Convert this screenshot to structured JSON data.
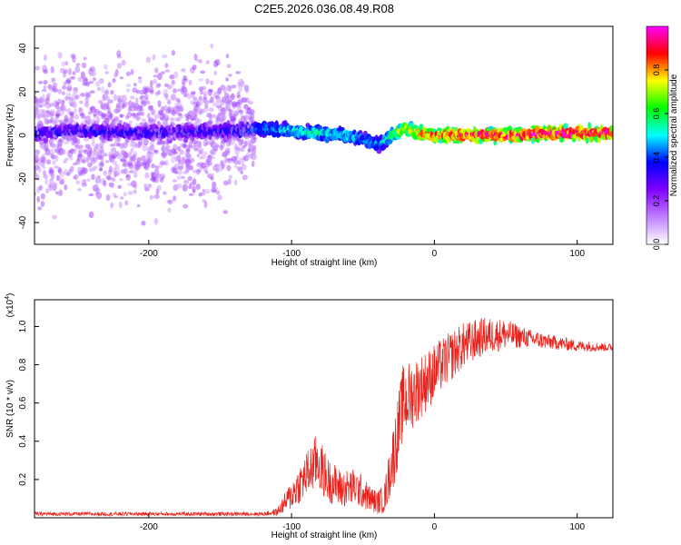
{
  "figure_title": "C2E5.2026.036.08.49.R08",
  "chart_data": [
    {
      "type": "heatmap",
      "name": "spectrogram",
      "xlabel": "Height of straight line (km)",
      "ylabel": "Frequency (Hz)",
      "xlim": [
        -280,
        125
      ],
      "ylim": [
        -50,
        50
      ],
      "xticks": [
        -200,
        -100,
        0,
        100
      ],
      "yticks": [
        -40,
        -20,
        0,
        20,
        40
      ],
      "colorbar": {
        "label": "Normalized spectral amplitude",
        "range": [
          0,
          1
        ],
        "ticks": [
          0.0,
          0.2,
          0.4,
          0.6,
          0.8
        ],
        "colormap": [
          "#ffffff",
          "#c080ff",
          "#8000ff",
          "#0000ff",
          "#00ffff",
          "#00ff00",
          "#ffff00",
          "#ff0000",
          "#ff00ff"
        ]
      },
      "ridge": {
        "x": [
          -280,
          -250,
          -200,
          -150,
          -115,
          -100,
          -80,
          -60,
          -45,
          -38,
          -30,
          -20,
          -10,
          0,
          20,
          40,
          60,
          80,
          100,
          125
        ],
        "freq": [
          1,
          2,
          1,
          2,
          3,
          2,
          1,
          0,
          -3,
          -4,
          0,
          3,
          1,
          0,
          0,
          0,
          0,
          1,
          1,
          1
        ],
        "amplitude": [
          0.35,
          0.35,
          0.35,
          0.35,
          0.45,
          0.5,
          0.55,
          0.5,
          0.45,
          0.45,
          0.6,
          0.75,
          0.8,
          0.85,
          0.9,
          0.92,
          0.93,
          0.94,
          0.95,
          0.95
        ],
        "spread_hz": [
          45,
          45,
          45,
          45,
          8,
          6,
          6,
          6,
          6,
          6,
          3,
          3,
          3,
          3,
          3,
          3,
          3,
          3,
          3,
          3
        ]
      }
    },
    {
      "type": "line",
      "name": "snr",
      "xlabel": "Height of straight line (km)",
      "ylabel": "SNR (10 * v/v)",
      "yscale_label": "(x10",
      "yscale_exp": "4",
      "yscale_close": ")",
      "xlim": [
        -280,
        125
      ],
      "ylim": [
        0,
        1.14
      ],
      "xticks": [
        -200,
        -100,
        0,
        100
      ],
      "yticks": [
        0.2,
        0.4,
        0.6,
        0.8,
        1.0
      ],
      "color": "#e8221b",
      "series": [
        {
          "x": [
            -280,
            -200,
            -120,
            -110,
            -100,
            -90,
            -82,
            -75,
            -65,
            -55,
            -45,
            -40,
            -35,
            -28,
            -22,
            -15,
            -5,
            5,
            20,
            35,
            50,
            65,
            80,
            100,
            125
          ],
          "y": [
            0.02,
            0.02,
            0.02,
            0.03,
            0.12,
            0.22,
            0.3,
            0.2,
            0.15,
            0.16,
            0.1,
            0.08,
            0.1,
            0.35,
            0.6,
            0.65,
            0.72,
            0.8,
            0.9,
            0.95,
            0.96,
            0.94,
            0.92,
            0.9,
            0.89
          ],
          "noise": [
            0.01,
            0.01,
            0.01,
            0.02,
            0.08,
            0.12,
            0.15,
            0.12,
            0.1,
            0.1,
            0.07,
            0.06,
            0.08,
            0.18,
            0.2,
            0.18,
            0.16,
            0.14,
            0.12,
            0.1,
            0.08,
            0.05,
            0.04,
            0.03,
            0.02
          ]
        }
      ]
    }
  ]
}
